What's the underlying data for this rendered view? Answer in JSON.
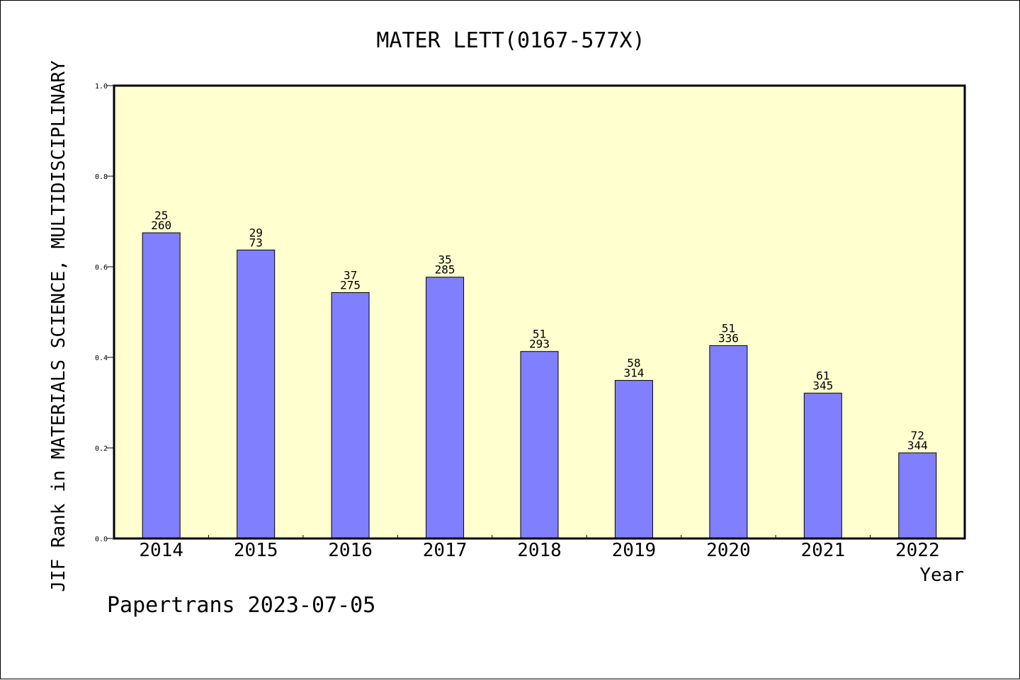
{
  "chart_data": {
    "type": "bar",
    "title": "MATER LETT(0167-577X)",
    "xlabel": "Year",
    "ylabel": "JIF Rank in MATERIALS SCIENCE, MULTIDISCIPLINARY",
    "ylim": [
      0,
      1.0
    ],
    "yticks": [
      "0.0",
      "0.2",
      "0.4",
      "0.6",
      "0.8",
      "1.0"
    ],
    "categories": [
      "2014",
      "2015",
      "2016",
      "2017",
      "2018",
      "2019",
      "2020",
      "2021",
      "2022"
    ],
    "values": [
      0.675,
      0.637,
      0.543,
      0.577,
      0.413,
      0.349,
      0.426,
      0.321,
      0.189
    ],
    "rank_labels": [
      "25",
      "29",
      "37",
      "35",
      "51",
      "58",
      "51",
      "61",
      "72"
    ],
    "total_labels": [
      "260",
      "73",
      "275",
      "285",
      "293",
      "314",
      "336",
      "345",
      "344"
    ],
    "bar_color": "#8080ff",
    "plot_background": "#ffffd0",
    "grid": false
  },
  "footer": "Papertrans 2023-07-05"
}
